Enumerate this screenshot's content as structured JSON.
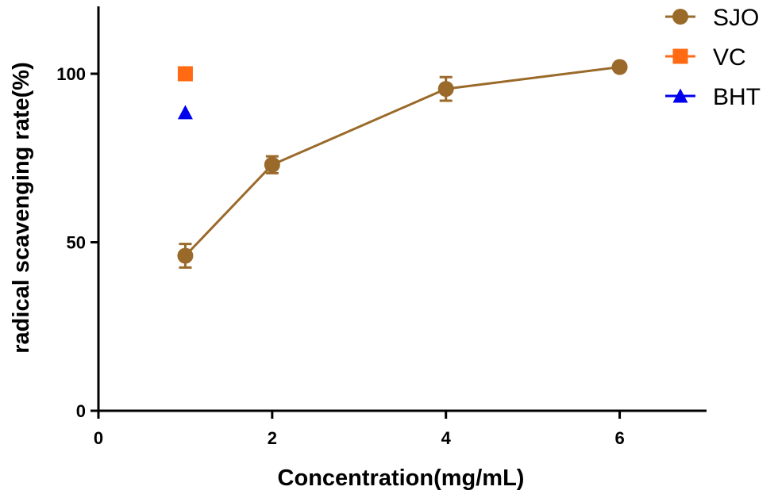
{
  "chart_data": {
    "type": "line",
    "xlabel": "Concentration(mg/mL)",
    "ylabel": "radical scavenging rate(%)",
    "xlim": [
      0,
      7
    ],
    "ylim": [
      0,
      120
    ],
    "xticks": [
      "0",
      "2",
      "4",
      "6"
    ],
    "yticks": [
      "0",
      "50",
      "100"
    ],
    "grid": false,
    "legend_position": "top-right",
    "series": [
      {
        "name": "SJO",
        "marker": "circle",
        "color": "#9A6A2A",
        "connected": true,
        "x": [
          1,
          2,
          4,
          6
        ],
        "y": [
          46,
          73,
          95.5,
          102
        ],
        "error": [
          3.5,
          2.5,
          3.5,
          0
        ]
      },
      {
        "name": "VC",
        "marker": "square",
        "color": "#FF6A13",
        "connected": false,
        "x": [
          1
        ],
        "y": [
          100
        ],
        "error": [
          0
        ]
      },
      {
        "name": "BHT",
        "marker": "triangle",
        "color": "#0000EE",
        "connected": false,
        "x": [
          1
        ],
        "y": [
          88.5
        ],
        "error": [
          0
        ]
      }
    ]
  }
}
